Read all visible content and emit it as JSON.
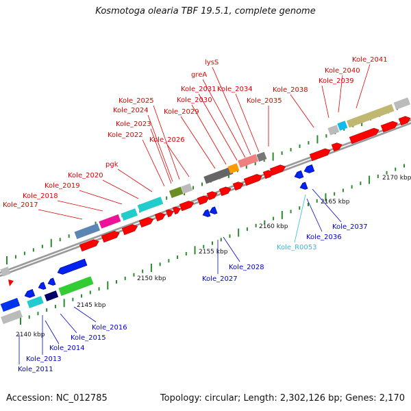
{
  "title": "Kosmotoga olearia TBF 19.5.1, complete genome",
  "accession": "Accession: NC_012785",
  "summary": "Topology: circular; Length: 2,302,126 bp; Genes: 2,170",
  "colors": {
    "forward_label": "#e00000",
    "reverse_label": "#0000cc",
    "rna_label": "#33bbdd",
    "backbone": "#9a9a9a",
    "tick_green": "#2a8a2a"
  },
  "scale_labels": [
    "2140 kbp",
    "2145 kbp",
    "2150 kbp",
    "2155 kbp",
    "2160 kbp",
    "2165 kbp",
    "2170 kbp"
  ],
  "forward_genes": [
    "Kole_2017",
    "Kole_2018",
    "Kole_2019",
    "Kole_2020",
    "pgk",
    "Kole_2022",
    "Kole_2023",
    "Kole_2024",
    "Kole_2025",
    "Kole_2026",
    "Kole_2029",
    "Kole_2030",
    "Kole_2031",
    "greA",
    "lysS",
    "Kole_2034",
    "Kole_2035",
    "Kole_2038",
    "Kole_2039",
    "Kole_2040",
    "Kole_2041"
  ],
  "reverse_genes": [
    "Kole_2011",
    "Kole_2013",
    "Kole_2014",
    "Kole_2015",
    "Kole_2016",
    "Kole_2027",
    "Kole_2028",
    "Kole_R0053",
    "Kole_2036",
    "Kole_2037"
  ]
}
